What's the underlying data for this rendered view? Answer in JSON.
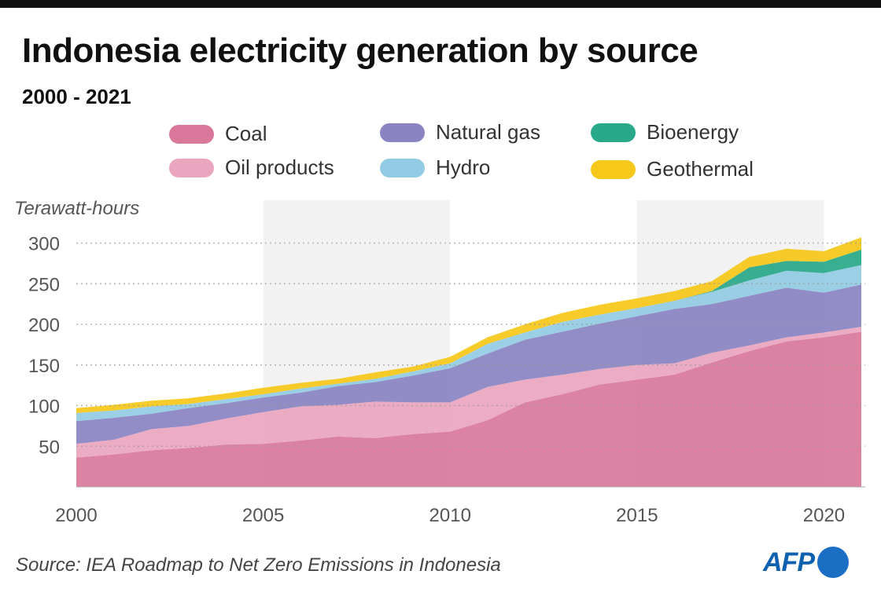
{
  "title": "Indonesia electricity generation by source",
  "subtitle": "2000 - 2021",
  "source": "Source: IEA Roadmap to Net Zero Emissions in Indonesia",
  "logo": "AFP",
  "chart_data": {
    "type": "area",
    "stacked": true,
    "ylabel": "Terawatt-hours",
    "ylim": [
      0,
      310
    ],
    "yticks": [
      50,
      100,
      150,
      200,
      250,
      300
    ],
    "xticks": [
      2000,
      2005,
      2010,
      2015,
      2020
    ],
    "grid": "horizontal dotted",
    "shaded_periods": [
      [
        2005,
        2010
      ],
      [
        2015,
        2020
      ]
    ],
    "legend_position": "top",
    "x": [
      2000,
      2001,
      2002,
      2003,
      2004,
      2005,
      2006,
      2007,
      2008,
      2009,
      2010,
      2011,
      2012,
      2013,
      2014,
      2015,
      2016,
      2017,
      2018,
      2019,
      2020,
      2021
    ],
    "series": [
      {
        "name": "Coal",
        "color": "#d9789b",
        "values": [
          36,
          40,
          45,
          48,
          52,
          53,
          57,
          62,
          60,
          65,
          68,
          82,
          104,
          114,
          126,
          132,
          138,
          153,
          167,
          179,
          184,
          191
        ]
      },
      {
        "name": "Oil products",
        "color": "#eaa6bf",
        "values": [
          17,
          18,
          26,
          27,
          32,
          39,
          42,
          39,
          45,
          39,
          36,
          41,
          28,
          24,
          19,
          18,
          14,
          12,
          7,
          5,
          6,
          6
        ]
      },
      {
        "name": "Natural gas",
        "color": "#8a84c2",
        "values": [
          28,
          27,
          19,
          22,
          19,
          18,
          17,
          23,
          24,
          33,
          42,
          41,
          49,
          53,
          56,
          60,
          67,
          60,
          61,
          61,
          49,
          52
        ]
      },
      {
        "name": "Hydro",
        "color": "#93cbe4",
        "values": [
          10,
          9,
          9,
          5,
          5,
          4,
          5,
          3,
          4,
          5,
          6,
          12,
          9,
          12,
          11,
          10,
          10,
          15,
          19,
          21,
          24,
          24
        ]
      },
      {
        "name": "Bioenergy",
        "color": "#2aa98a",
        "values": [
          0,
          0,
          0,
          0,
          0,
          0,
          0,
          0,
          0,
          0,
          0,
          0,
          0,
          0,
          0,
          0,
          0,
          1,
          16,
          12,
          14,
          19
        ]
      },
      {
        "name": "Geothermal",
        "color": "#f6c81a",
        "values": [
          6,
          7,
          7,
          7,
          7,
          8,
          7,
          6,
          8,
          6,
          8,
          8,
          10,
          11,
          12,
          12,
          12,
          12,
          13,
          15,
          13,
          15
        ]
      }
    ]
  }
}
